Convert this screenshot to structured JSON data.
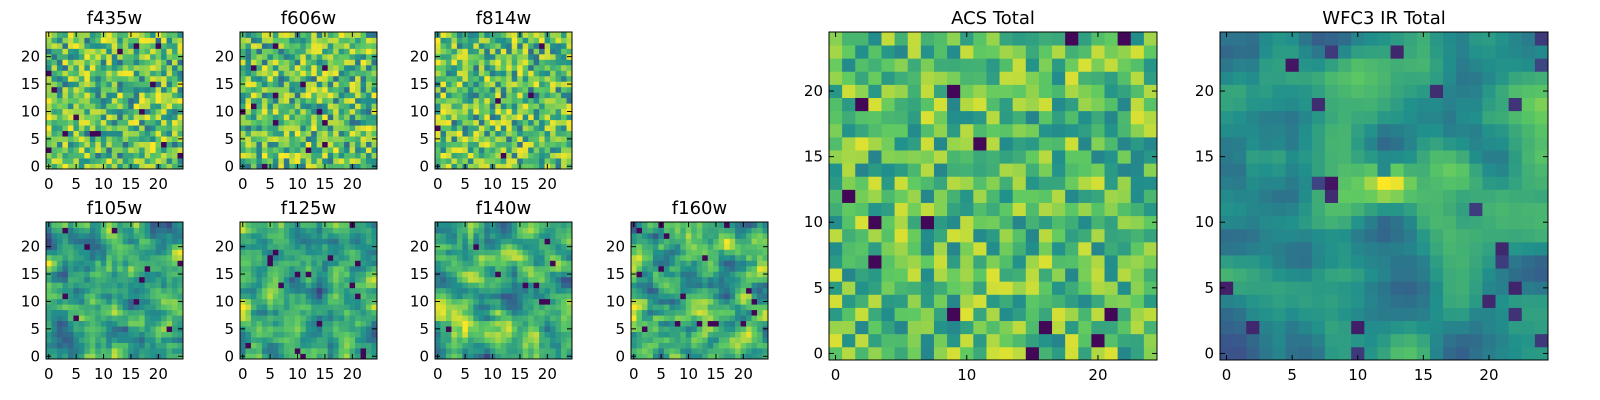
{
  "chart_data": [
    {
      "type": "heatmap",
      "title": "f435w",
      "xlim": [
        0,
        24
      ],
      "ylim": [
        0,
        24
      ],
      "xticks": [
        0,
        5,
        10,
        15,
        20
      ],
      "yticks": [
        0,
        5,
        10,
        15,
        20
      ],
      "grid": false,
      "colormap": "viridis"
    },
    {
      "type": "heatmap",
      "title": "f606w",
      "xlim": [
        0,
        24
      ],
      "ylim": [
        0,
        24
      ],
      "xticks": [
        0,
        5,
        10,
        15,
        20
      ],
      "yticks": [
        0,
        5,
        10,
        15,
        20
      ],
      "grid": false,
      "colormap": "viridis"
    },
    {
      "type": "heatmap",
      "title": "f814w",
      "xlim": [
        0,
        24
      ],
      "ylim": [
        0,
        24
      ],
      "xticks": [
        0,
        5,
        10,
        15,
        20
      ],
      "yticks": [
        0,
        5,
        10,
        15,
        20
      ],
      "grid": false,
      "colormap": "viridis"
    },
    {
      "type": "heatmap",
      "title": "f105w",
      "xlim": [
        0,
        24
      ],
      "ylim": [
        0,
        24
      ],
      "xticks": [
        0,
        5,
        10,
        15,
        20
      ],
      "yticks": [
        0,
        5,
        10,
        15,
        20
      ],
      "grid": false,
      "colormap": "viridis"
    },
    {
      "type": "heatmap",
      "title": "f125w",
      "xlim": [
        0,
        24
      ],
      "ylim": [
        0,
        24
      ],
      "xticks": [
        0,
        5,
        10,
        15,
        20
      ],
      "yticks": [
        0,
        5,
        10,
        15,
        20
      ],
      "grid": false,
      "colormap": "viridis"
    },
    {
      "type": "heatmap",
      "title": "f140w",
      "xlim": [
        0,
        24
      ],
      "ylim": [
        0,
        24
      ],
      "xticks": [
        0,
        5,
        10,
        15,
        20
      ],
      "yticks": [
        0,
        5,
        10,
        15,
        20
      ],
      "grid": false,
      "colormap": "viridis"
    },
    {
      "type": "heatmap",
      "title": "f160w",
      "xlim": [
        0,
        24
      ],
      "ylim": [
        0,
        24
      ],
      "xticks": [
        0,
        5,
        10,
        15,
        20
      ],
      "yticks": [
        0,
        5,
        10,
        15,
        20
      ],
      "grid": false,
      "colormap": "viridis"
    },
    {
      "type": "heatmap",
      "title": "ACS Total",
      "xlim": [
        0,
        24
      ],
      "ylim": [
        0,
        24
      ],
      "xticks": [
        0,
        10,
        20
      ],
      "yticks": [
        0,
        5,
        10,
        15,
        20
      ],
      "grid": false,
      "colormap": "viridis"
    },
    {
      "type": "heatmap",
      "title": "WFC3 IR Total",
      "xlim": [
        0,
        24
      ],
      "ylim": [
        0,
        24
      ],
      "xticks": [
        0,
        5,
        10,
        15,
        20
      ],
      "yticks": [
        0,
        5,
        10,
        15,
        20
      ],
      "grid": false,
      "colormap": "viridis"
    }
  ],
  "colors": {
    "viridis": [
      "#440154",
      "#3b528b",
      "#21918c",
      "#5ec962",
      "#fde725"
    ]
  }
}
